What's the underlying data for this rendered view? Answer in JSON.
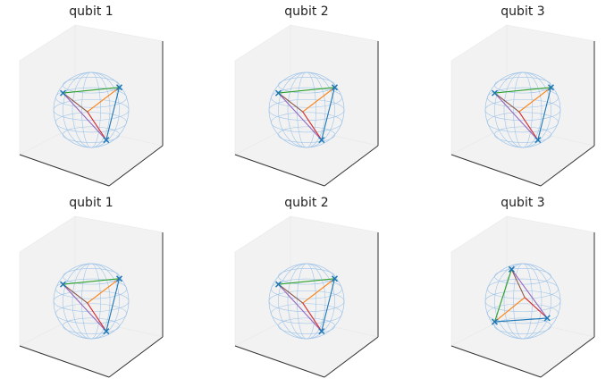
{
  "colors": {
    "pane": "#f2f2f2",
    "pane_edge": "#e8e8e8",
    "sphere_wire": "#9fc4e8",
    "axis_line": "#333333",
    "edge_colors": [
      "#2ca02c",
      "#1f77b4",
      "#ff7f0e",
      "#d62728",
      "#9467bd",
      "#8c564b"
    ],
    "marker": "#1f77b4"
  },
  "chart_data": [
    {
      "type": "bloch-sphere",
      "title": "qubit 1",
      "grid": false,
      "points": [
        [
          -0.75,
          0.45
        ],
        [
          0.75,
          0.6
        ],
        [
          0.4,
          -0.8
        ]
      ],
      "center": [
        -0.1,
        -0.05
      ],
      "marker": "x"
    },
    {
      "type": "bloch-sphere",
      "title": "qubit 2",
      "grid": false,
      "points": [
        [
          -0.75,
          0.45
        ],
        [
          0.75,
          0.6
        ],
        [
          0.4,
          -0.8
        ]
      ],
      "center": [
        -0.1,
        -0.05
      ],
      "marker": "x"
    },
    {
      "type": "bloch-sphere",
      "title": "qubit 3",
      "grid": false,
      "points": [
        [
          -0.75,
          0.45
        ],
        [
          0.75,
          0.6
        ],
        [
          0.4,
          -0.8
        ]
      ],
      "center": [
        -0.1,
        -0.05
      ],
      "marker": "x"
    },
    {
      "type": "bloch-sphere",
      "title": "qubit 1",
      "grid": false,
      "points": [
        [
          -0.75,
          0.45
        ],
        [
          0.75,
          0.6
        ],
        [
          0.4,
          -0.8
        ]
      ],
      "center": [
        -0.1,
        -0.05
      ],
      "marker": "x"
    },
    {
      "type": "bloch-sphere",
      "title": "qubit 2",
      "grid": false,
      "points": [
        [
          -0.75,
          0.45
        ],
        [
          0.75,
          0.6
        ],
        [
          0.4,
          -0.8
        ]
      ],
      "center": [
        -0.1,
        -0.05
      ],
      "marker": "x"
    },
    {
      "type": "bloch-sphere",
      "title": "qubit 3",
      "grid": false,
      "points": [
        [
          -0.3,
          0.85
        ],
        [
          -0.75,
          -0.55
        ],
        [
          0.65,
          -0.45
        ]
      ],
      "center": [
        0.05,
        0.1
      ],
      "marker": "x"
    }
  ]
}
